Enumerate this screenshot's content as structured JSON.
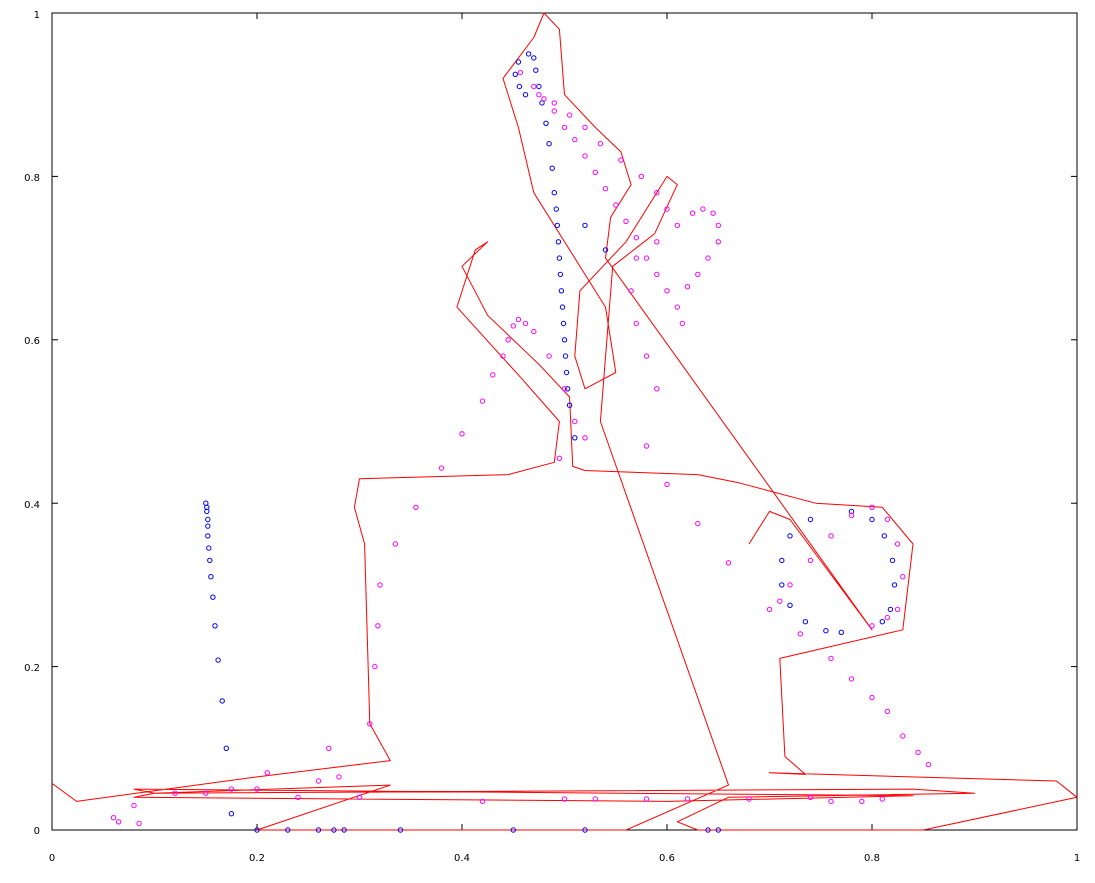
{
  "chart_data": {
    "type": "scatter",
    "title": "",
    "xlabel": "",
    "ylabel": "",
    "xlim": [
      0,
      1
    ],
    "ylim": [
      0,
      1
    ],
    "grid": false,
    "x_ticks": [
      "0",
      "0.2",
      "0.4",
      "0.6",
      "0.8",
      "1"
    ],
    "y_ticks": [
      "0",
      "0.2",
      "0.4",
      "0.6",
      "0.8",
      "1"
    ],
    "colors": {
      "outline": "#ff0000",
      "series_blue": "#0000ff",
      "series_magenta": "#ff00ff",
      "axis": "#000000"
    },
    "series": [
      {
        "type": "line",
        "color": "#ff0000",
        "points": [
          [
            0.0,
            0.057
          ],
          [
            0.024,
            0.035
          ],
          [
            0.2,
            0.065
          ],
          [
            0.33,
            0.085
          ],
          [
            0.31,
            0.13
          ],
          [
            0.305,
            0.35
          ],
          [
            0.295,
            0.395
          ],
          [
            0.3,
            0.43
          ],
          [
            0.445,
            0.435
          ],
          [
            0.49,
            0.45
          ],
          [
            0.495,
            0.5
          ],
          [
            0.46,
            0.55
          ],
          [
            0.395,
            0.64
          ],
          [
            0.413,
            0.71
          ],
          [
            0.425,
            0.72
          ],
          [
            0.4,
            0.69
          ],
          [
            0.425,
            0.63
          ],
          [
            0.475,
            0.57
          ],
          [
            0.505,
            0.53
          ],
          [
            0.508,
            0.445
          ],
          [
            0.52,
            0.44
          ],
          [
            0.63,
            0.435
          ],
          [
            0.67,
            0.425
          ],
          [
            0.745,
            0.4
          ],
          [
            0.81,
            0.395
          ],
          [
            0.84,
            0.35
          ],
          [
            0.83,
            0.245
          ],
          [
            0.71,
            0.21
          ],
          [
            0.715,
            0.09
          ],
          [
            0.735,
            0.068
          ],
          [
            0.7,
            0.07
          ],
          [
            0.98,
            0.06
          ],
          [
            1.0,
            0.04
          ],
          [
            0.85,
            0.0
          ],
          [
            0.63,
            0.0
          ],
          [
            0.61,
            0.01
          ],
          [
            0.66,
            0.04
          ],
          [
            0.9,
            0.045
          ],
          [
            0.84,
            0.05
          ],
          [
            0.1,
            0.045
          ],
          [
            0.08,
            0.04
          ],
          [
            0.6,
            0.035
          ],
          [
            0.84,
            0.042
          ],
          [
            0.08,
            0.05
          ],
          [
            0.1,
            0.045
          ],
          [
            0.33,
            0.055
          ],
          [
            0.2,
            0.0
          ],
          [
            0.56,
            0.0
          ],
          [
            0.66,
            0.055
          ],
          [
            0.535,
            0.5
          ],
          [
            0.547,
            0.69
          ],
          [
            0.588,
            0.73
          ],
          [
            0.61,
            0.79
          ],
          [
            0.6,
            0.8
          ],
          [
            0.56,
            0.72
          ],
          [
            0.515,
            0.66
          ],
          [
            0.51,
            0.58
          ],
          [
            0.52,
            0.54
          ],
          [
            0.55,
            0.56
          ],
          [
            0.54,
            0.64
          ],
          [
            0.47,
            0.78
          ],
          [
            0.455,
            0.86
          ],
          [
            0.44,
            0.92
          ],
          [
            0.47,
            0.97
          ],
          [
            0.48,
            1.0
          ],
          [
            0.495,
            0.98
          ],
          [
            0.5,
            0.9
          ],
          [
            0.53,
            0.86
          ],
          [
            0.555,
            0.83
          ],
          [
            0.565,
            0.79
          ],
          [
            0.545,
            0.75
          ],
          [
            0.54,
            0.7
          ],
          [
            0.8,
            0.245
          ],
          [
            0.72,
            0.38
          ],
          [
            0.7,
            0.39
          ],
          [
            0.68,
            0.35
          ]
        ]
      },
      {
        "type": "scatter",
        "color": "#0000ff",
        "points": [
          [
            0.15,
            0.4
          ],
          [
            0.151,
            0.395
          ],
          [
            0.151,
            0.39
          ],
          [
            0.152,
            0.38
          ],
          [
            0.152,
            0.372
          ],
          [
            0.152,
            0.36
          ],
          [
            0.153,
            0.345
          ],
          [
            0.154,
            0.33
          ],
          [
            0.155,
            0.31
          ],
          [
            0.157,
            0.285
          ],
          [
            0.159,
            0.25
          ],
          [
            0.162,
            0.208
          ],
          [
            0.166,
            0.158
          ],
          [
            0.17,
            0.1
          ],
          [
            0.175,
            0.02
          ],
          [
            0.2,
            0.0
          ],
          [
            0.23,
            0.0
          ],
          [
            0.26,
            0.0
          ],
          [
            0.275,
            0.0
          ],
          [
            0.285,
            0.0
          ],
          [
            0.34,
            0.0
          ],
          [
            0.45,
            0.0
          ],
          [
            0.52,
            0.0
          ],
          [
            0.64,
            0.0
          ],
          [
            0.65,
            0.0
          ],
          [
            0.465,
            0.95
          ],
          [
            0.47,
            0.945
          ],
          [
            0.472,
            0.93
          ],
          [
            0.475,
            0.91
          ],
          [
            0.478,
            0.89
          ],
          [
            0.482,
            0.865
          ],
          [
            0.485,
            0.84
          ],
          [
            0.488,
            0.81
          ],
          [
            0.49,
            0.78
          ],
          [
            0.492,
            0.76
          ],
          [
            0.493,
            0.74
          ],
          [
            0.494,
            0.72
          ],
          [
            0.495,
            0.7
          ],
          [
            0.496,
            0.68
          ],
          [
            0.497,
            0.66
          ],
          [
            0.498,
            0.64
          ],
          [
            0.499,
            0.62
          ],
          [
            0.5,
            0.6
          ],
          [
            0.501,
            0.58
          ],
          [
            0.502,
            0.56
          ],
          [
            0.503,
            0.54
          ],
          [
            0.505,
            0.52
          ],
          [
            0.51,
            0.48
          ],
          [
            0.455,
            0.94
          ],
          [
            0.452,
            0.925
          ],
          [
            0.456,
            0.91
          ],
          [
            0.462,
            0.9
          ],
          [
            0.52,
            0.74
          ],
          [
            0.54,
            0.71
          ],
          [
            0.74,
            0.38
          ],
          [
            0.72,
            0.36
          ],
          [
            0.712,
            0.33
          ],
          [
            0.712,
            0.3
          ],
          [
            0.72,
            0.275
          ],
          [
            0.735,
            0.255
          ],
          [
            0.755,
            0.244
          ],
          [
            0.77,
            0.242
          ],
          [
            0.78,
            0.39
          ],
          [
            0.8,
            0.38
          ],
          [
            0.812,
            0.36
          ],
          [
            0.82,
            0.33
          ],
          [
            0.822,
            0.3
          ],
          [
            0.818,
            0.27
          ],
          [
            0.81,
            0.255
          ]
        ]
      },
      {
        "type": "scatter",
        "color": "#ff00ff",
        "points": [
          [
            0.06,
            0.015
          ],
          [
            0.065,
            0.01
          ],
          [
            0.08,
            0.03
          ],
          [
            0.085,
            0.008
          ],
          [
            0.12,
            0.045
          ],
          [
            0.15,
            0.045
          ],
          [
            0.175,
            0.05
          ],
          [
            0.2,
            0.05
          ],
          [
            0.21,
            0.07
          ],
          [
            0.24,
            0.04
          ],
          [
            0.26,
            0.06
          ],
          [
            0.27,
            0.1
          ],
          [
            0.28,
            0.065
          ],
          [
            0.3,
            0.04
          ],
          [
            0.31,
            0.13
          ],
          [
            0.315,
            0.2
          ],
          [
            0.318,
            0.25
          ],
          [
            0.32,
            0.3
          ],
          [
            0.335,
            0.35
          ],
          [
            0.355,
            0.395
          ],
          [
            0.38,
            0.443
          ],
          [
            0.4,
            0.485
          ],
          [
            0.42,
            0.525
          ],
          [
            0.43,
            0.557
          ],
          [
            0.44,
            0.58
          ],
          [
            0.445,
            0.6
          ],
          [
            0.45,
            0.617
          ],
          [
            0.455,
            0.625
          ],
          [
            0.462,
            0.62
          ],
          [
            0.47,
            0.61
          ],
          [
            0.485,
            0.58
          ],
          [
            0.5,
            0.54
          ],
          [
            0.51,
            0.5
          ],
          [
            0.52,
            0.48
          ],
          [
            0.495,
            0.455
          ],
          [
            0.58,
            0.47
          ],
          [
            0.6,
            0.423
          ],
          [
            0.63,
            0.375
          ],
          [
            0.66,
            0.327
          ],
          [
            0.7,
            0.27
          ],
          [
            0.71,
            0.28
          ],
          [
            0.72,
            0.3
          ],
          [
            0.74,
            0.33
          ],
          [
            0.76,
            0.36
          ],
          [
            0.78,
            0.385
          ],
          [
            0.8,
            0.395
          ],
          [
            0.815,
            0.38
          ],
          [
            0.825,
            0.35
          ],
          [
            0.83,
            0.31
          ],
          [
            0.825,
            0.27
          ],
          [
            0.815,
            0.26
          ],
          [
            0.8,
            0.25
          ],
          [
            0.73,
            0.24
          ],
          [
            0.76,
            0.21
          ],
          [
            0.78,
            0.185
          ],
          [
            0.8,
            0.162
          ],
          [
            0.815,
            0.145
          ],
          [
            0.83,
            0.115
          ],
          [
            0.845,
            0.095
          ],
          [
            0.855,
            0.08
          ],
          [
            0.457,
            0.927
          ],
          [
            0.47,
            0.91
          ],
          [
            0.48,
            0.895
          ],
          [
            0.49,
            0.88
          ],
          [
            0.5,
            0.86
          ],
          [
            0.51,
            0.845
          ],
          [
            0.52,
            0.825
          ],
          [
            0.53,
            0.805
          ],
          [
            0.54,
            0.785
          ],
          [
            0.55,
            0.765
          ],
          [
            0.56,
            0.745
          ],
          [
            0.57,
            0.725
          ],
          [
            0.58,
            0.7
          ],
          [
            0.59,
            0.68
          ],
          [
            0.6,
            0.66
          ],
          [
            0.61,
            0.64
          ],
          [
            0.615,
            0.62
          ],
          [
            0.59,
            0.54
          ],
          [
            0.58,
            0.58
          ],
          [
            0.57,
            0.62
          ],
          [
            0.565,
            0.66
          ],
          [
            0.57,
            0.7
          ],
          [
            0.59,
            0.72
          ],
          [
            0.61,
            0.74
          ],
          [
            0.625,
            0.755
          ],
          [
            0.635,
            0.76
          ],
          [
            0.645,
            0.755
          ],
          [
            0.65,
            0.74
          ],
          [
            0.65,
            0.72
          ],
          [
            0.64,
            0.7
          ],
          [
            0.63,
            0.68
          ],
          [
            0.62,
            0.665
          ],
          [
            0.475,
            0.9
          ],
          [
            0.49,
            0.89
          ],
          [
            0.505,
            0.875
          ],
          [
            0.52,
            0.86
          ],
          [
            0.535,
            0.84
          ],
          [
            0.555,
            0.82
          ],
          [
            0.575,
            0.8
          ],
          [
            0.59,
            0.78
          ],
          [
            0.6,
            0.76
          ],
          [
            0.42,
            0.035
          ],
          [
            0.5,
            0.038
          ],
          [
            0.53,
            0.038
          ],
          [
            0.58,
            0.038
          ],
          [
            0.62,
            0.038
          ],
          [
            0.68,
            0.038
          ],
          [
            0.74,
            0.04
          ],
          [
            0.76,
            0.035
          ],
          [
            0.79,
            0.035
          ],
          [
            0.81,
            0.038
          ]
        ]
      }
    ]
  }
}
